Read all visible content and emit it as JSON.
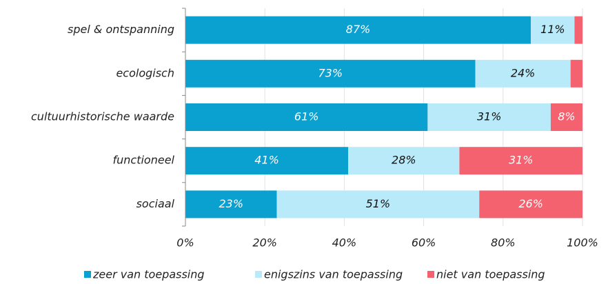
{
  "chart_data": {
    "type": "bar",
    "orientation": "horizontal",
    "stacked": true,
    "categories": [
      "spel & ontspanning",
      "ecologisch",
      "cultuurhistorische waarde",
      "functioneel",
      "sociaal"
    ],
    "series": [
      {
        "name": "zeer van toepassing",
        "color": "#0aa0d0",
        "values": [
          87,
          73,
          61,
          41,
          23
        ],
        "value_labels": [
          "87%",
          "73%",
          "61%",
          "41%",
          "23%"
        ]
      },
      {
        "name": "enigszins van toepassing",
        "color": "#b9eaf9",
        "values": [
          11,
          24,
          31,
          28,
          51
        ],
        "value_labels": [
          "11%",
          "24%",
          "31%",
          "28%",
          "51%"
        ]
      },
      {
        "name": "niet van toepassing",
        "color": "#f4626f",
        "values": [
          2,
          3,
          8,
          31,
          26
        ],
        "value_labels": [
          null,
          null,
          "8%",
          "31%",
          "26%"
        ]
      }
    ],
    "xlim": [
      0,
      100
    ],
    "xticks": [
      {
        "value": 0,
        "label": "0%"
      },
      {
        "value": 20,
        "label": "20%"
      },
      {
        "value": 40,
        "label": "40%"
      },
      {
        "value": 60,
        "label": "60%"
      },
      {
        "value": 80,
        "label": "80%"
      },
      {
        "value": 100,
        "label": "100%"
      }
    ],
    "grid": true,
    "legend": "bottom"
  }
}
